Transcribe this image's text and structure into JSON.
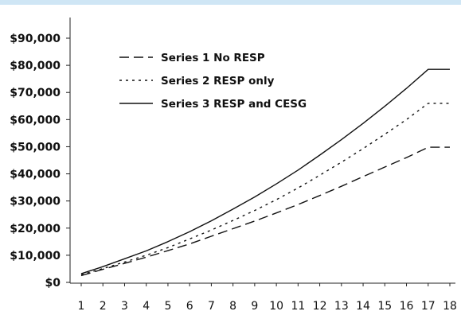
{
  "chart_data": {
    "type": "line",
    "title": "",
    "xlabel": "",
    "ylabel": "",
    "x": [
      1,
      2,
      3,
      4,
      5,
      6,
      7,
      8,
      9,
      10,
      11,
      12,
      13,
      14,
      15,
      16,
      17,
      18
    ],
    "x_tick_labels": [
      "1",
      "2",
      "3",
      "4",
      "5",
      "6",
      "7",
      "8",
      "9",
      "10",
      "11",
      "12",
      "13",
      "14",
      "15",
      "16",
      "17",
      "18"
    ],
    "ylim": [
      0,
      90000
    ],
    "y_ticks": [
      0,
      10000,
      20000,
      30000,
      40000,
      50000,
      60000,
      70000,
      80000,
      90000
    ],
    "y_tick_labels": [
      "$0",
      "$10,000",
      "$20,000",
      "$30,000",
      "$40,000",
      "$50,000",
      "$60,000",
      "$70,000",
      "$80,000",
      "$90,000"
    ],
    "grid": false,
    "legend_position": "top-left",
    "series": [
      {
        "name": "Series 1 No RESP",
        "style": "dashed",
        "color": "#111111",
        "values": [
          2500,
          4800,
          7000,
          9300,
          11700,
          14200,
          17000,
          19800,
          22600,
          25600,
          28700,
          32000,
          35400,
          39000,
          42500,
          46000,
          49800,
          49800
        ]
      },
      {
        "name": "Series 2 RESP only",
        "style": "dotted",
        "color": "#111111",
        "values": [
          2800,
          5100,
          7500,
          10000,
          12800,
          16000,
          19300,
          22800,
          26500,
          30500,
          34800,
          39500,
          44300,
          49300,
          54600,
          60000,
          66000,
          66000
        ]
      },
      {
        "name": "Series 3 RESP and CESG",
        "style": "solid",
        "color": "#111111",
        "values": [
          3200,
          5800,
          8700,
          11600,
          15000,
          18700,
          22700,
          27000,
          31500,
          36300,
          41400,
          46900,
          52600,
          58600,
          64900,
          71500,
          78500,
          78500
        ]
      }
    ]
  }
}
